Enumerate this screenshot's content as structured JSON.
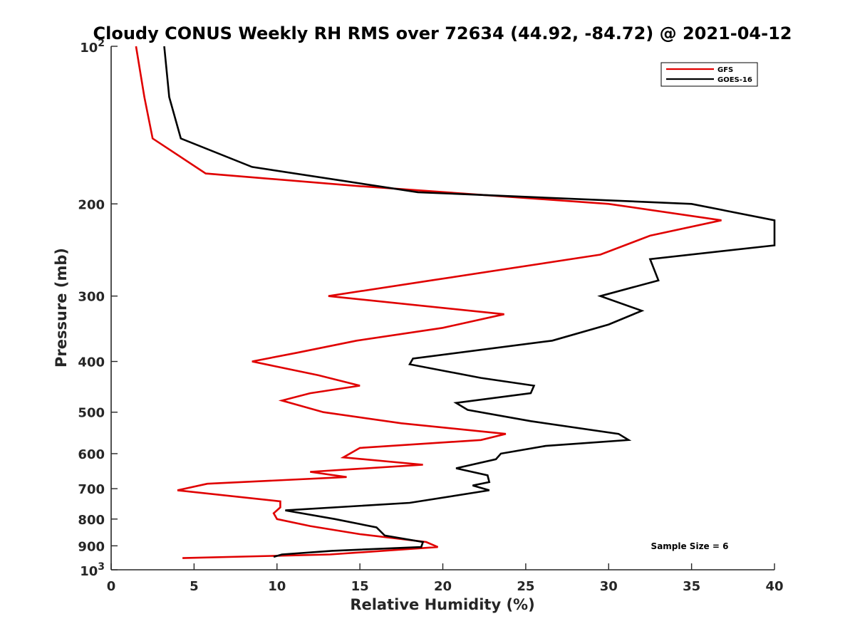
{
  "chart_data": {
    "type": "line",
    "title": "Cloudy CONUS Weekly RH RMS over 72634 (44.92, -84.72) @ 2021-04-12",
    "xlabel": "Relative Humidity (%)",
    "ylabel": "Pressure (mb)",
    "xlim": [
      0,
      40
    ],
    "ylim": [
      100,
      1000
    ],
    "y_scale": "log",
    "y_reversed": true,
    "x_ticks": [
      "0",
      "5",
      "10",
      "15",
      "20",
      "25",
      "30",
      "35",
      "40"
    ],
    "x_tick_values": [
      0,
      5,
      10,
      15,
      20,
      25,
      30,
      35,
      40
    ],
    "y_ticks": [
      {
        "value": 200,
        "label": "200"
      },
      {
        "value": 300,
        "label": "300"
      },
      {
        "value": 400,
        "label": "400"
      },
      {
        "value": 500,
        "label": "500"
      },
      {
        "value": 600,
        "label": "600"
      },
      {
        "value": 700,
        "label": "700"
      },
      {
        "value": 800,
        "label": "800"
      },
      {
        "value": 900,
        "label": "900"
      }
    ],
    "y_tick_powers": [
      {
        "value": 100,
        "base": "10",
        "exp": "2"
      },
      {
        "value": 1000,
        "base": "10",
        "exp": "3"
      }
    ],
    "grid": false,
    "legend_position": "top-right",
    "annotation": "Sample Size = 6",
    "series": [
      {
        "name": "GFS",
        "color": "#e00000",
        "points": [
          [
            1.5,
            100
          ],
          [
            2.0,
            125
          ],
          [
            2.5,
            150
          ],
          [
            5.7,
            175
          ],
          [
            15.0,
            185
          ],
          [
            30.0,
            200
          ],
          [
            36.8,
            215
          ],
          [
            32.5,
            230
          ],
          [
            29.5,
            250
          ],
          [
            19.3,
            280
          ],
          [
            13.1,
            300
          ],
          [
            23.7,
            325
          ],
          [
            20.0,
            345
          ],
          [
            14.8,
            365
          ],
          [
            11.2,
            385
          ],
          [
            8.5,
            400
          ],
          [
            12.5,
            425
          ],
          [
            15.0,
            445
          ],
          [
            12.0,
            460
          ],
          [
            10.3,
            475
          ],
          [
            12.8,
            500
          ],
          [
            17.5,
            525
          ],
          [
            23.8,
            550
          ],
          [
            22.3,
            565
          ],
          [
            15.0,
            585
          ],
          [
            14.0,
            610
          ],
          [
            18.8,
            630
          ],
          [
            12.0,
            650
          ],
          [
            14.2,
            665
          ],
          [
            5.8,
            685
          ],
          [
            4.0,
            705
          ],
          [
            10.2,
            740
          ],
          [
            10.2,
            760
          ],
          [
            9.8,
            780
          ],
          [
            10.0,
            800
          ],
          [
            12.0,
            825
          ],
          [
            15.0,
            855
          ],
          [
            19.0,
            885
          ],
          [
            19.7,
            905
          ],
          [
            13.2,
            935
          ],
          [
            4.3,
            950
          ]
        ]
      },
      {
        "name": "GOES-16",
        "color": "#000000",
        "points": [
          [
            3.2,
            100
          ],
          [
            3.5,
            125
          ],
          [
            4.2,
            150
          ],
          [
            8.5,
            170
          ],
          [
            18.5,
            190
          ],
          [
            35.0,
            200
          ],
          [
            40.0,
            215
          ],
          [
            40.0,
            240
          ],
          [
            32.5,
            255
          ],
          [
            33.0,
            280
          ],
          [
            29.5,
            300
          ],
          [
            32.0,
            320
          ],
          [
            30.0,
            340
          ],
          [
            26.6,
            365
          ],
          [
            18.2,
            395
          ],
          [
            18.0,
            405
          ],
          [
            22.3,
            430
          ],
          [
            25.5,
            445
          ],
          [
            25.3,
            460
          ],
          [
            20.8,
            480
          ],
          [
            21.5,
            495
          ],
          [
            25.3,
            520
          ],
          [
            30.6,
            550
          ],
          [
            31.2,
            565
          ],
          [
            26.2,
            580
          ],
          [
            23.5,
            600
          ],
          [
            23.2,
            615
          ],
          [
            20.8,
            640
          ],
          [
            22.7,
            660
          ],
          [
            22.8,
            680
          ],
          [
            21.8,
            690
          ],
          [
            22.8,
            705
          ],
          [
            18.0,
            745
          ],
          [
            10.5,
            770
          ],
          [
            13.5,
            800
          ],
          [
            16.0,
            830
          ],
          [
            16.5,
            860
          ],
          [
            18.8,
            885
          ],
          [
            18.7,
            905
          ],
          [
            13.3,
            920
          ],
          [
            10.3,
            935
          ],
          [
            9.8,
            945
          ]
        ]
      }
    ]
  }
}
